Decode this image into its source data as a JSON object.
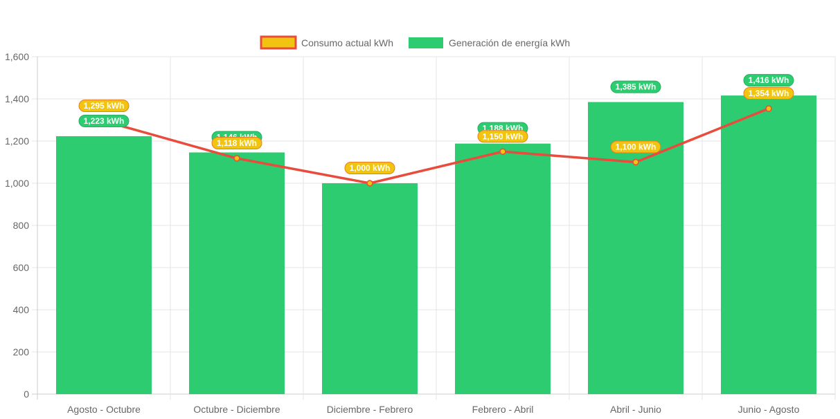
{
  "chart_data": {
    "type": "bar",
    "categories": [
      "Agosto - Octubre",
      "Octubre - Diciembre",
      "Diciembre - Febrero",
      "Febrero - Abril",
      "Abril - Junio",
      "Junio - Agosto"
    ],
    "series": [
      {
        "name": "Consumo actual kWh",
        "type": "line",
        "values": [
          1295,
          1118,
          1000,
          1150,
          1100,
          1354
        ],
        "data_labels": [
          "1,295 kWh",
          "1,118 kWh",
          "1,000 kWh",
          "1,150 kWh",
          "1,100 kWh",
          "1,354 kWh"
        ],
        "color": "#e74c3c",
        "point_color": "#f1c40f"
      },
      {
        "name": "Generación de energía kWh",
        "type": "bar",
        "values": [
          1223,
          1146,
          1000,
          1188,
          1385,
          1416
        ],
        "data_labels": [
          "1,223 kWh",
          "1,146 kWh",
          "",
          "1,188 kWh",
          "1,385 kWh",
          "1,416 kWh"
        ],
        "color": "#2ecc71"
      }
    ],
    "y_ticks": [
      "0",
      "200",
      "400",
      "600",
      "800",
      "1,000",
      "1,200",
      "1,400",
      "1,600"
    ],
    "ylim": [
      0,
      1600
    ],
    "grid": true,
    "legend_position": "top-center",
    "title": "",
    "xlabel": "",
    "ylabel": ""
  }
}
